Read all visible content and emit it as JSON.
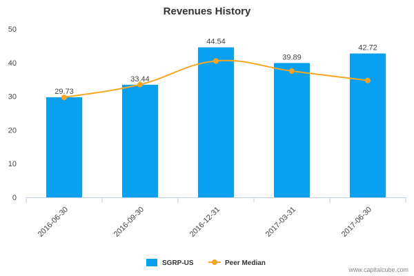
{
  "chart_data": {
    "type": "bar",
    "title": "Revenues History",
    "categories": [
      "2016-06-30",
      "2016-09-30",
      "2016-12-31",
      "2017-03-31",
      "2017-06-30"
    ],
    "series": [
      {
        "name": "SGRP-US",
        "type": "bar",
        "color": "#0aa0f0",
        "values": [
          29.73,
          33.44,
          44.54,
          39.89,
          42.72
        ]
      },
      {
        "name": "Peer Median",
        "type": "line",
        "color": "#f5a623",
        "values": [
          29.7,
          33.5,
          40.5,
          37.5,
          34.7
        ]
      }
    ],
    "data_labels": [
      "29.73",
      "33.44",
      "44.54",
      "39.89",
      "42.72"
    ],
    "y_ticks": [
      "0",
      "10",
      "20",
      "30",
      "40",
      "50"
    ],
    "ylim": [
      0,
      50
    ],
    "xlabel": "",
    "ylabel": "",
    "grid": false,
    "legend_position": "bottom"
  },
  "credit": "www.capitalcube.com"
}
